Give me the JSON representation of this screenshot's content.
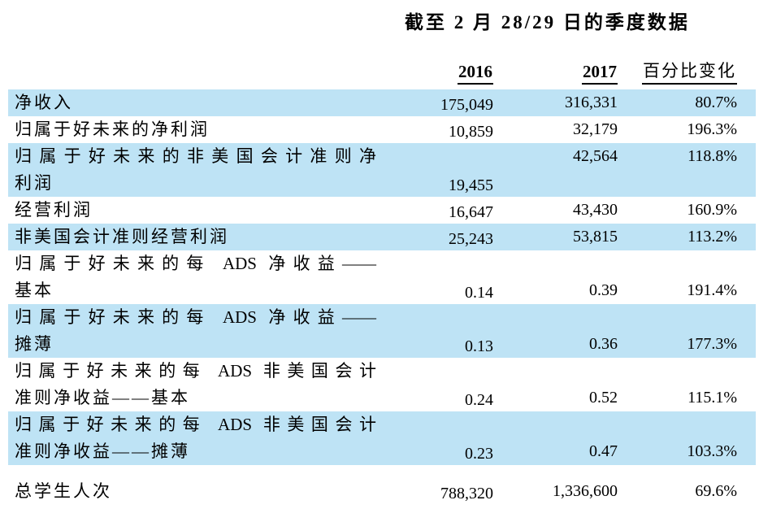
{
  "page": {
    "title": "截至 2 月 28/29 日的季度数据"
  },
  "colors": {
    "row_shade": "#BEE3F5",
    "text": "#000000",
    "background": "#FFFFFF"
  },
  "table": {
    "headers": {
      "y2016": "2016",
      "y2017": "2017",
      "pct_change": "百分比变化"
    },
    "rows": [
      {
        "label": "净收入",
        "v2016": "175,049",
        "v2017": "316,331",
        "pct": "80.7%"
      },
      {
        "label": "归属于好未来的净利润",
        "v2016": "10,859",
        "v2017": "32,179",
        "pct": "196.3%"
      },
      {
        "label": "归属于好未来的非美国会计准则净",
        "label2": "利润",
        "v2016": "19,455",
        "v2017": "42,564",
        "pct": "118.8%"
      },
      {
        "label": "经营利润",
        "v2016": "16,647",
        "v2017": "43,430",
        "pct": "160.9%"
      },
      {
        "label": "非美国会计准则经营利润",
        "v2016": "25,243",
        "v2017": "53,815",
        "pct": "113.2%"
      },
      {
        "label": "归属于好未来的每 ADS 净收益——",
        "label2": "基本",
        "v2016": "0.14",
        "v2017": "0.39",
        "pct": "191.4%"
      },
      {
        "label": "归属于好未来的每 ADS 净收益——",
        "label2": "摊薄",
        "v2016": "0.13",
        "v2017": "0.36",
        "pct": "177.3%"
      },
      {
        "label": "归属于好未来的每 ADS 非美国会计",
        "label2": "准则净收益——基本",
        "v2016": "0.24",
        "v2017": "0.52",
        "pct": "115.1%"
      },
      {
        "label": "归属于好未来的每 ADS 非美国会计",
        "label2": "准则净收益——摊薄",
        "v2016": "0.23",
        "v2017": "0.47",
        "pct": "103.3%"
      },
      {
        "label": "总学生人次",
        "v2016": "788,320",
        "v2017": "1,336,600",
        "pct": "69.6%"
      }
    ]
  }
}
